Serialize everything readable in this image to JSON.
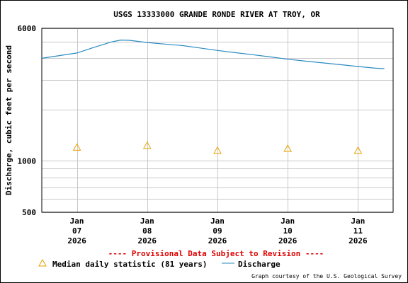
{
  "chart_data": {
    "type": "line",
    "title": "USGS 13333000 GRANDE RONDE RIVER AT TROY, OR",
    "ylabel": "Discharge, cubic feet per second",
    "xlabel": "",
    "y_scale": "log",
    "ylim": [
      500,
      6000
    ],
    "yticks": [
      {
        "value": 6000,
        "label": "6000"
      },
      {
        "value": 1000,
        "label": "1000"
      },
      {
        "value": 500,
        "label": "500"
      }
    ],
    "y_minor_ticks": [
      600,
      700,
      800,
      900,
      2000,
      3000,
      4000,
      5000
    ],
    "xlim": [
      "2026-01-06T12:00",
      "2026-01-11T12:00"
    ],
    "xticks": [
      {
        "value": "2026-01-07",
        "label": [
          "Jan",
          "07",
          "2026"
        ]
      },
      {
        "value": "2026-01-08",
        "label": [
          "Jan",
          "08",
          "2026"
        ]
      },
      {
        "value": "2026-01-09",
        "label": [
          "Jan",
          "09",
          "2026"
        ]
      },
      {
        "value": "2026-01-10",
        "label": [
          "Jan",
          "10",
          "2026"
        ]
      },
      {
        "value": "2026-01-11",
        "label": [
          "Jan",
          "11",
          "2026"
        ]
      }
    ],
    "grid": true,
    "series": [
      {
        "name": "Discharge",
        "color": "#2a8bc2",
        "kind": "line",
        "points": [
          {
            "x": "2026-01-06T12:00",
            "y": 4000
          },
          {
            "x": "2026-01-06T18:00",
            "y": 4150
          },
          {
            "x": "2026-01-07T00:00",
            "y": 4300
          },
          {
            "x": "2026-01-07T06:00",
            "y": 4650
          },
          {
            "x": "2026-01-07T12:00",
            "y": 5000
          },
          {
            "x": "2026-01-07T15:00",
            "y": 5120
          },
          {
            "x": "2026-01-07T18:00",
            "y": 5100
          },
          {
            "x": "2026-01-08T00:00",
            "y": 4950
          },
          {
            "x": "2026-01-08T06:00",
            "y": 4850
          },
          {
            "x": "2026-01-08T12:00",
            "y": 4750
          },
          {
            "x": "2026-01-08T18:00",
            "y": 4600
          },
          {
            "x": "2026-01-09T00:00",
            "y": 4450
          },
          {
            "x": "2026-01-09T06:00",
            "y": 4320
          },
          {
            "x": "2026-01-09T12:00",
            "y": 4200
          },
          {
            "x": "2026-01-09T18:00",
            "y": 4080
          },
          {
            "x": "2026-01-10T00:00",
            "y": 3950
          },
          {
            "x": "2026-01-10T06:00",
            "y": 3850
          },
          {
            "x": "2026-01-10T12:00",
            "y": 3760
          },
          {
            "x": "2026-01-10T18:00",
            "y": 3670
          },
          {
            "x": "2026-01-11T00:00",
            "y": 3580
          },
          {
            "x": "2026-01-11T06:00",
            "y": 3500
          },
          {
            "x": "2026-01-11T09:00",
            "y": 3480
          }
        ]
      },
      {
        "name": "Median daily statistic (81 years)",
        "color": "#e6a000",
        "kind": "marker-triangle",
        "points": [
          {
            "x": "2026-01-07T00:00",
            "y": 1200
          },
          {
            "x": "2026-01-08T00:00",
            "y": 1230
          },
          {
            "x": "2026-01-09T00:00",
            "y": 1150
          },
          {
            "x": "2026-01-10T00:00",
            "y": 1180
          },
          {
            "x": "2026-01-11T00:00",
            "y": 1150
          }
        ]
      }
    ]
  },
  "provisional_text": "---- Provisional Data Subject to Revision ----",
  "provisional_color": "#e00000",
  "legend": {
    "median_label": "Median daily statistic (81 years)",
    "discharge_label": "Discharge"
  },
  "credit": "Graph courtesy of the U.S. Geological Survey"
}
